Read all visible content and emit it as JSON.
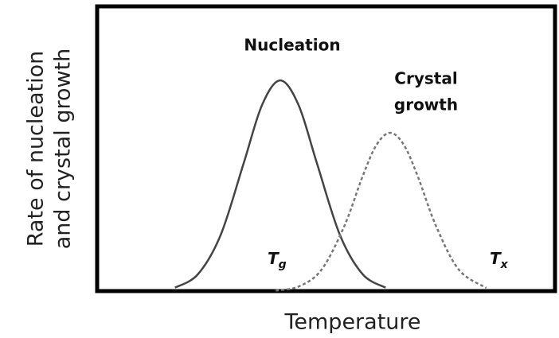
{
  "chart_data": {
    "type": "line",
    "xlabel": "Temperature",
    "ylabel": [
      "Rate of nucleation",
      "and crystal growth"
    ],
    "xlim": [
      0,
      100
    ],
    "ylim": [
      0,
      100
    ],
    "grid": false,
    "series": [
      {
        "name": "Nucleation",
        "color": "#444444",
        "dashed": false,
        "x": [
          17,
          22,
          27,
          32,
          36,
          40,
          44,
          48,
          53,
          58,
          63
        ],
        "values": [
          1.2,
          5.9,
          19.8,
          44.9,
          65.3,
          74,
          65.3,
          44.9,
          19.8,
          5.9,
          1.2
        ]
      },
      {
        "name": "Crystal growth",
        "color": "#777777",
        "dashed": true,
        "x": [
          39,
          44,
          49,
          54,
          58,
          61,
          64,
          67,
          70,
          74,
          79,
          85
        ],
        "values": [
          0.2,
          1.6,
          7.5,
          22.9,
          40.4,
          51.3,
          55.6,
          51.3,
          40.4,
          22.9,
          7.5,
          1.1
        ]
      }
    ],
    "annotations": [
      {
        "text": "Nucleation"
      },
      {
        "text": [
          "Crystal",
          "growth"
        ]
      },
      {
        "text": "T",
        "sub": "g"
      },
      {
        "text": "T",
        "sub": "x"
      }
    ]
  }
}
